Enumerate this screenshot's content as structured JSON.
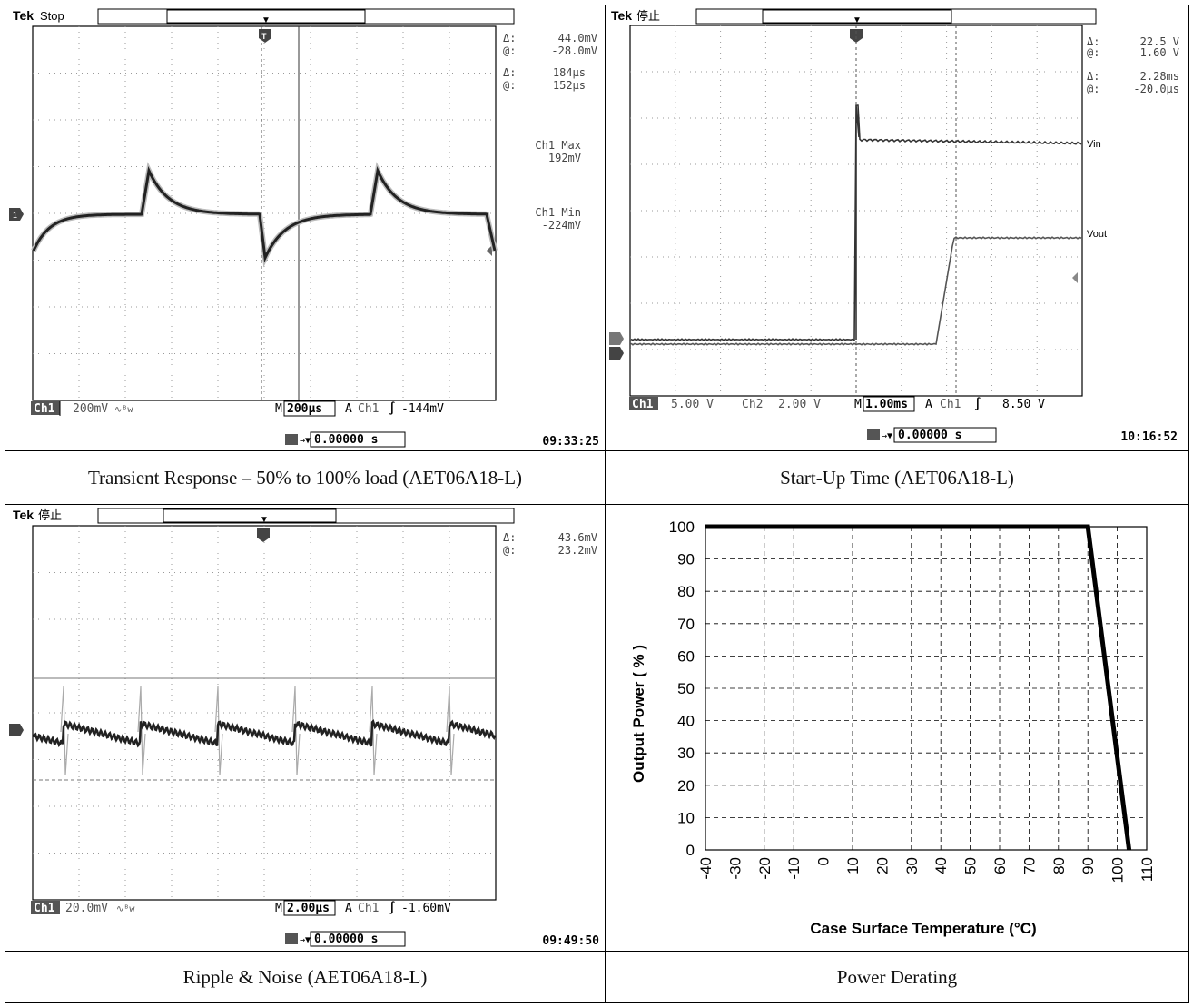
{
  "panels": {
    "transient": {
      "caption": "Transient Response – 50% to 100% load (AET06A18-L)",
      "brand": "Tek",
      "state": "Stop",
      "cursor_readout": [
        {
          "sym": "Δ:",
          "val": "44.0mV"
        },
        {
          "sym": "@:",
          "val": "-28.0mV"
        },
        {
          "sym": "Δ:",
          "val": "184µs"
        },
        {
          "sym": "@:",
          "val": "152µs"
        }
      ],
      "measure": [
        "Ch1 Max",
        "192mV",
        "Ch1 Min",
        "-224mV"
      ],
      "bottom": {
        "ch": "Ch1",
        "vdiv": "200mV",
        "coupling": "∿ᴮw",
        "m": "M",
        "time": "200µs",
        "a": "A",
        "trig_ch": "Ch1",
        "slope": "∫",
        "trig": "-144mV"
      },
      "trig_pos": "0.00000 s",
      "clock": "09:33:25"
    },
    "startup": {
      "caption": "Start-Up Time (AET06A18-L)",
      "brand": "Tek",
      "state": "停止",
      "cursor_readout": [
        {
          "sym": "Δ:",
          "val": "22.5 V"
        },
        {
          "sym": "@:",
          "val": "1.60 V"
        },
        {
          "sym": "Δ:",
          "val": "2.28ms"
        },
        {
          "sym": "@:",
          "val": "-20.0µs"
        }
      ],
      "labels": {
        "vin": "Vin",
        "vout": "Vout"
      },
      "bottom": {
        "ch1": "Ch1",
        "v1": "5.00 V",
        "ch2": "Ch2",
        "v2": "2.00 V",
        "m": "M",
        "time": "1.00ms",
        "a": "A",
        "trig_ch": "Ch1",
        "slope": "∫",
        "trig": "8.50 V"
      },
      "trig_pos": "0.00000 s",
      "clock": "10:16:52"
    },
    "ripple": {
      "caption": "Ripple & Noise (AET06A18-L)",
      "brand": "Tek",
      "state": "停止",
      "cursor_readout": [
        {
          "sym": "Δ:",
          "val": "43.6mV"
        },
        {
          "sym": "@:",
          "val": "23.2mV"
        }
      ],
      "bottom": {
        "ch": "Ch1",
        "vdiv": "20.0mV",
        "coupling": "∿ᴮw",
        "m": "M",
        "time": "2.00µs",
        "a": "A",
        "trig_ch": "Ch1",
        "slope": "∫",
        "trig": "-1.60mV"
      },
      "trig_pos": "0.00000 s",
      "clock": "09:49:50"
    },
    "derating": {
      "caption": "Power Derating"
    }
  },
  "chart_data": {
    "type": "line",
    "title": "",
    "xlabel": "Case Surface Temperature (°C)",
    "ylabel": "Output Power ( % )",
    "xlim": [
      -40,
      110
    ],
    "ylim": [
      0,
      100
    ],
    "xticks": [
      -40,
      -30,
      -20,
      -10,
      0,
      10,
      20,
      30,
      40,
      50,
      60,
      70,
      80,
      90,
      100,
      110
    ],
    "yticks": [
      0,
      10,
      20,
      30,
      40,
      50,
      60,
      70,
      80,
      90,
      100
    ],
    "grid": true,
    "series": [
      {
        "x": [
          -40,
          90,
          104
        ],
        "y": [
          100,
          100,
          0
        ],
        "color": "#000000"
      }
    ]
  }
}
